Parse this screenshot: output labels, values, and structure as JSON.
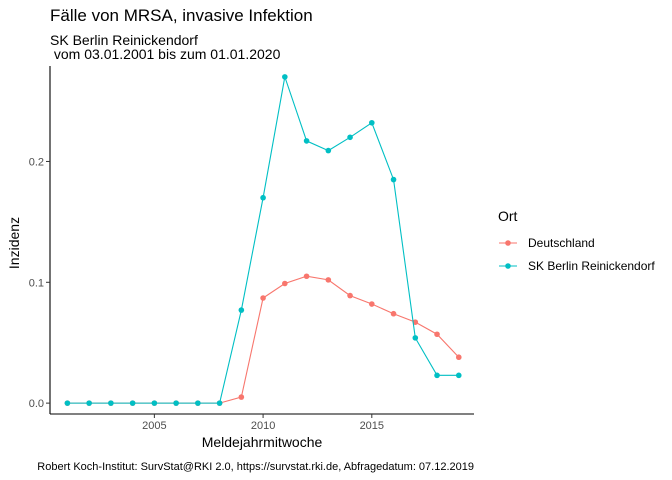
{
  "chart_data": {
    "type": "line",
    "title": "Fälle von MRSA, invasive Infektion",
    "subtitle_line1": "SK Berlin Reinickendorf",
    "subtitle_line2": " vom 03.01.2001 bis zum 01.01.2020",
    "xlabel": "Meldejahrmitwoche",
    "ylabel": "Inzidenz",
    "caption": "Robert Koch-Institut: SurvStat@RKI 2.0, https://survstat.rki.de, Abfragedatum: 07.12.2019",
    "xlim": [
      2000.2,
      2019.7
    ],
    "ylim": [
      -0.009,
      0.279
    ],
    "x_ticks": [
      2005,
      2010,
      2015
    ],
    "x_tick_labels": [
      "2005",
      "2010",
      "2015"
    ],
    "y_ticks": [
      0.0,
      0.1,
      0.2
    ],
    "y_tick_labels": [
      "0.0",
      "0.1",
      "0.2"
    ],
    "grid": false,
    "legend": {
      "title": "Ort",
      "position": "right"
    },
    "x": [
      2001,
      2002,
      2003,
      2004,
      2005,
      2006,
      2007,
      2008,
      2009,
      2010,
      2011,
      2012,
      2013,
      2014,
      2015,
      2016,
      2017,
      2018,
      2019
    ],
    "series": [
      {
        "name": "Deutschland",
        "color": "#F8766D",
        "values": [
          0,
          0,
          0,
          0,
          0,
          0,
          0,
          0,
          0.005,
          0.087,
          0.099,
          0.105,
          0.102,
          0.089,
          0.082,
          0.074,
          0.067,
          0.057,
          0.038
        ]
      },
      {
        "name": "SK Berlin Reinickendorf",
        "color": "#00BFC4",
        "values": [
          0,
          0,
          0,
          0,
          0,
          0,
          0,
          0,
          0.077,
          0.17,
          0.27,
          0.217,
          0.209,
          0.22,
          0.232,
          0.185,
          0.054,
          0.023,
          0.023
        ]
      }
    ]
  }
}
